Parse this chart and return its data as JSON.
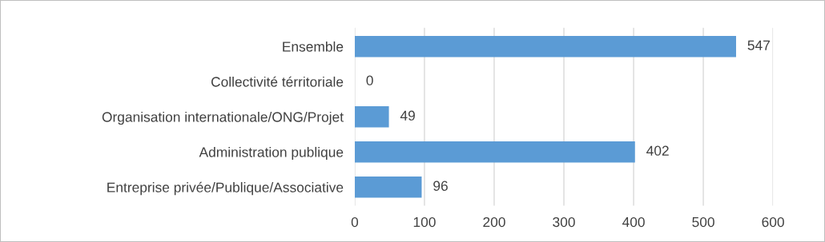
{
  "chart_data": {
    "type": "bar",
    "orientation": "horizontal",
    "categories": [
      "Ensemble",
      "Collectivité térritoriale",
      "Organisation internationale/ONG/Projet",
      "Administration publique",
      "Entreprise privée/Publique/Associative"
    ],
    "values": [
      547,
      0,
      49,
      402,
      96
    ],
    "color": "#5b9bd5",
    "xlim": [
      0,
      600
    ],
    "xticks": [
      0,
      100,
      200,
      300,
      400,
      500,
      600
    ],
    "grid": "x",
    "data_labels": true,
    "legend": false
  }
}
